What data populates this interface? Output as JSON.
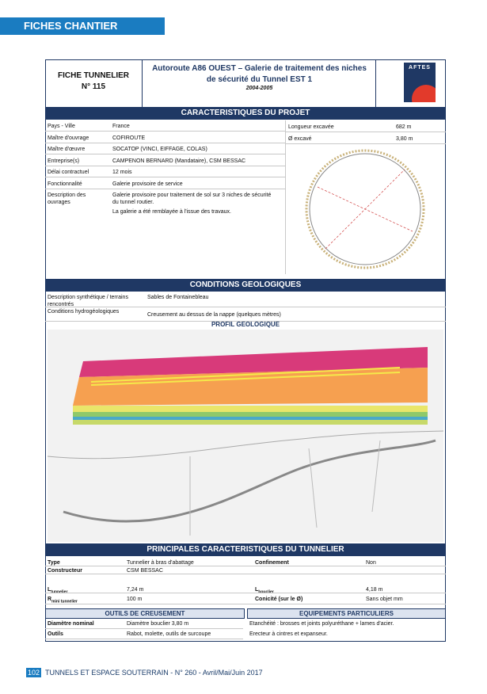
{
  "header": {
    "section": "FICHES CHANTIER"
  },
  "title_block": {
    "sheet_type": "FICHE TUNNELIER",
    "sheet_number": "N° 115",
    "title": "Autoroute A86 OUEST – Galerie de traitement des niches de sécurité du Tunnel EST 1",
    "years": "2004-2005",
    "logo": "AFTES"
  },
  "project": {
    "heading": "CARACTERISTIQUES DU PROJET",
    "rows": [
      {
        "label": "Pays - Ville",
        "value": "France"
      },
      {
        "label": "Maître d'ouvrage",
        "value": "COFIROUTE"
      },
      {
        "label": "Maître d'œuvre",
        "value": "SOCATOP (VINCI, EIFFAGE, COLAS)"
      },
      {
        "label": "Entreprise(s)",
        "value": "CAMPENON BERNARD (Mandataire), CSM BESSAC"
      },
      {
        "label": "Délai contractuel",
        "value": "12 mois"
      },
      {
        "label": "Fonctionnalité",
        "value": "Galerie provisoire de service"
      }
    ],
    "description": {
      "label": "Description des ouvrages",
      "lines": [
        "Galerie provisoire pour traitement de sol sur 3 niches de sécurité du tunnel routier.",
        "La galerie a été remblayée à l'issue des travaux."
      ]
    },
    "right_rows": [
      {
        "label": "Longueur excavée",
        "value": "682 m"
      },
      {
        "label": "Ø excavé",
        "value": "3,80 m"
      }
    ]
  },
  "geology": {
    "heading": "CONDITIONS GEOLOGIQUES",
    "rows": [
      {
        "label": "Description synthétique / terrains rencontrés",
        "value": "Sables de Fontainebleau"
      },
      {
        "label": "Conditions hydrogéologiques",
        "value": "Creusement au dessus de la nappe (quelques mètres)"
      }
    ],
    "profile_heading": "PROFIL GEOLOGIQUE"
  },
  "machine": {
    "heading": "PRINCIPALES CARACTERISTIQUES DU TUNNELIER",
    "type": {
      "label": "Type",
      "value": "Tunnelier à bras d'abattage"
    },
    "confinement": {
      "label": "Confinement",
      "value": "Non"
    },
    "maker": {
      "label": "Constructeur",
      "value": "CSM BESSAC"
    },
    "length": {
      "symbol": "L",
      "sub": "tunnelier",
      "value": "7,24 m"
    },
    "shield": {
      "symbol": "L",
      "sub": "bouclier",
      "value": "4,18 m"
    },
    "radius": {
      "symbol": "R",
      "sub": "mini tunnelier",
      "value": "100 m"
    },
    "taper": {
      "label": "Conicité (sur le Ø)",
      "value": "Sans objet mm"
    }
  },
  "tools": {
    "heading": "OUTILS DE CREUSEMENT",
    "rows": [
      {
        "label": "Diamètre nominal",
        "value": "Diamètre bouclier 3,80 m"
      },
      {
        "label": "Outils",
        "value": "Rabot, molette, outils de surcoupe"
      }
    ]
  },
  "equipment": {
    "heading": "EQUIPEMENTS PARTICULIERS",
    "lines": [
      "Etanchéité : brosses et joints polyuréthane + lames d'acier.",
      "Erecteur à cintres et expanseur."
    ]
  },
  "footer": {
    "page": "102",
    "journal": "TUNNELS ET ESPACE SOUTERRAIN - N° 260 - Avril/Mai/Juin 2017"
  }
}
